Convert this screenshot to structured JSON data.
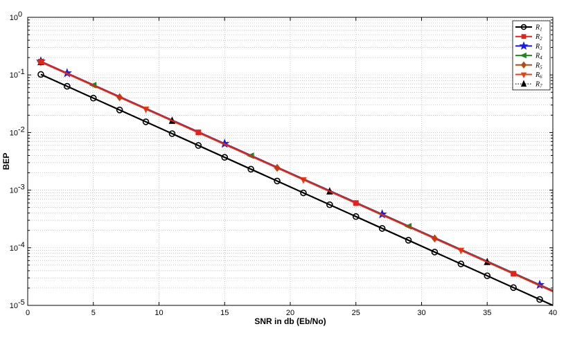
{
  "chart_data": {
    "type": "line",
    "title": "",
    "xlabel": "SNR in db (Eb/No)",
    "ylabel": "BEP",
    "xlim": [
      0,
      40
    ],
    "ylim": [
      1e-05,
      1
    ],
    "yscale": "log",
    "grid": true,
    "legend_position": "top-right",
    "x_ticks": [
      0,
      5,
      10,
      15,
      20,
      25,
      30,
      35,
      40
    ],
    "y_ticks": [
      {
        "value": 1,
        "base": "10",
        "exp": "0"
      },
      {
        "value": 0.1,
        "base": "10",
        "exp": "-1"
      },
      {
        "value": 0.01,
        "base": "10",
        "exp": "-2"
      },
      {
        "value": 0.001,
        "base": "10",
        "exp": "-3"
      },
      {
        "value": 0.0001,
        "base": "10",
        "exp": "-4"
      },
      {
        "value": 1e-05,
        "base": "10",
        "exp": "-5"
      }
    ],
    "series": [
      {
        "name": "R1",
        "label_main": "R",
        "label_sub": "1",
        "color": "#000000",
        "marker": "circle",
        "dashed": false,
        "marker_start": 1,
        "x": [
          1,
          40
        ],
        "y": [
          0.102,
          1e-05
        ]
      },
      {
        "name": "R2",
        "label_main": "R",
        "label_sub": "2",
        "color": "#e8201a",
        "marker": "square",
        "dashed": false,
        "marker_start": 13,
        "x": [
          1,
          40
        ],
        "y": [
          0.17,
          1.75e-05
        ]
      },
      {
        "name": "R3",
        "label_main": "R",
        "label_sub": "3",
        "color": "#1a1ae8",
        "marker": "star",
        "dashed": false,
        "marker_start": 3,
        "x": [
          1,
          40
        ],
        "y": [
          0.172,
          1.8e-05
        ]
      },
      {
        "name": "R4",
        "label_main": "R",
        "label_sub": "4",
        "color": "#1a8a1a",
        "marker": "triangle-left",
        "dashed": false,
        "marker_start": 5,
        "x": [
          1,
          40
        ],
        "y": [
          0.17,
          1.78e-05
        ]
      },
      {
        "name": "R5",
        "label_main": "R",
        "label_sub": "5",
        "color": "#b84a10",
        "marker": "diamond",
        "dashed": false,
        "marker_start": 7,
        "x": [
          1,
          40
        ],
        "y": [
          0.168,
          1.75e-05
        ]
      },
      {
        "name": "R6",
        "label_main": "R",
        "label_sub": "6",
        "color": "#e84010",
        "marker": "triangle-down",
        "dashed": false,
        "marker_start": 9,
        "x": [
          1,
          40
        ],
        "y": [
          0.168,
          1.75e-05
        ]
      },
      {
        "name": "R7",
        "label_main": "R",
        "label_sub": "7",
        "color": "#000000",
        "marker": "triangle-up",
        "dashed": true,
        "marker_start": 11,
        "x": [
          1,
          40
        ],
        "y": [
          0.168,
          1.75e-05
        ]
      }
    ],
    "marker_step": 12
  }
}
